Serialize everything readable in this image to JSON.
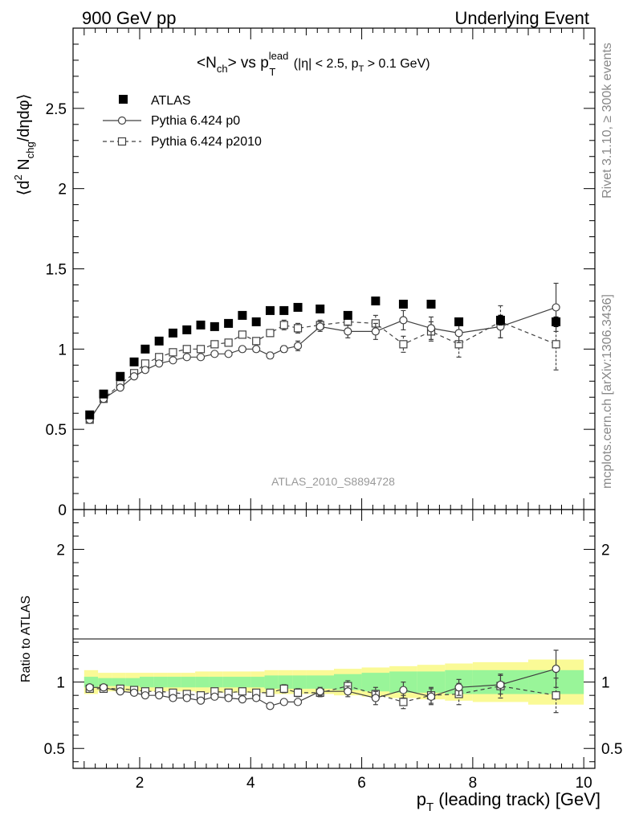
{
  "header": {
    "left": "900 GeV pp",
    "right": "Underlying Event"
  },
  "title_parts": {
    "a": "<N",
    "a_sub": "ch",
    "b": "> vs p",
    "b_sup": "lead",
    "b_sub": "T",
    "c": " (|η| < 2.5, p",
    "c_sub": "T",
    "d": " > 0.1 GeV)"
  },
  "ylabel_parts": {
    "a": "⟨d",
    "a_sup": "2",
    "b": " N",
    "b_sub": "chg",
    "c": "/dηdφ⟩"
  },
  "ratio_ylabel": "Ratio to ATLAS",
  "xlabel_parts": {
    "a": "p",
    "a_sub": "T",
    "b": " (leading track) [GeV]"
  },
  "side_text_1": "Rivet 3.1.10, ≥ 300k events",
  "side_text_2": "mcplots.cern.ch [arXiv:1306.3436]",
  "analysis_tag": "ATLAS_2010_S8894728",
  "legend": {
    "atlas": "ATLAS",
    "p0": "Pythia 6.424 p0",
    "p2010": "Pythia 6.424 p2010"
  },
  "colors": {
    "atlas": "#000000",
    "mc": "#404040",
    "band_inner": "#99f599",
    "band_outer": "#fafa96",
    "tag": "#999999"
  },
  "chart_data": [
    {
      "type": "scatter",
      "panel": "main",
      "xlim": [
        0.8,
        10.2
      ],
      "ylim": [
        0,
        3.0
      ],
      "yticks": [
        0,
        0.5,
        1,
        1.5,
        2,
        2.5
      ],
      "ytick_labels": [
        "0",
        "0.5",
        "1",
        "1.5",
        "2",
        "2.5"
      ],
      "x": [
        1.1,
        1.35,
        1.65,
        1.9,
        2.1,
        2.35,
        2.6,
        2.85,
        3.1,
        3.35,
        3.6,
        3.85,
        4.1,
        4.35,
        4.6,
        4.85,
        5.25,
        5.75,
        6.25,
        6.75,
        7.25,
        7.75,
        8.5,
        9.5
      ],
      "series": [
        {
          "name": "ATLAS",
          "marker": "filled-square",
          "values": [
            0.59,
            0.72,
            0.83,
            0.92,
            1.0,
            1.05,
            1.1,
            1.12,
            1.15,
            1.14,
            1.16,
            1.21,
            1.17,
            1.24,
            1.24,
            1.26,
            1.25,
            1.21,
            1.3,
            1.28,
            1.28,
            1.17,
            1.18,
            1.17
          ],
          "errors": [
            0,
            0,
            0,
            0,
            0,
            0,
            0,
            0,
            0,
            0,
            0,
            0,
            0,
            0,
            0,
            0,
            0,
            0,
            0,
            0,
            0,
            0.02,
            0.03,
            0.03
          ]
        },
        {
          "name": "Pythia 6.424 p0",
          "marker": "open-circle",
          "line": "solid",
          "values": [
            0.56,
            0.69,
            0.76,
            0.83,
            0.87,
            0.91,
            0.93,
            0.95,
            0.95,
            0.97,
            0.97,
            1.0,
            1.0,
            0.96,
            1.0,
            1.02,
            1.14,
            1.11,
            1.11,
            1.18,
            1.13,
            1.1,
            1.14,
            1.26
          ],
          "errors": [
            0.01,
            0.01,
            0.01,
            0.01,
            0.01,
            0.01,
            0.01,
            0.01,
            0.01,
            0.01,
            0.01,
            0.01,
            0.01,
            0.02,
            0.02,
            0.03,
            0.03,
            0.04,
            0.05,
            0.06,
            0.07,
            0.06,
            0.07,
            0.15
          ]
        },
        {
          "name": "Pythia 6.424 p2010",
          "marker": "open-square",
          "line": "dashed",
          "values": [
            0.56,
            0.69,
            0.78,
            0.85,
            0.91,
            0.95,
            0.98,
            1.0,
            1.0,
            1.03,
            1.04,
            1.09,
            1.05,
            1.1,
            1.15,
            1.13,
            1.15,
            1.17,
            1.16,
            1.03,
            1.11,
            1.03,
            1.17,
            1.03
          ],
          "errors": [
            0.01,
            0.01,
            0.01,
            0.01,
            0.01,
            0.01,
            0.01,
            0.01,
            0.01,
            0.01,
            0.01,
            0.02,
            0.02,
            0.02,
            0.03,
            0.03,
            0.03,
            0.04,
            0.05,
            0.05,
            0.06,
            0.08,
            0.1,
            0.16
          ]
        }
      ]
    },
    {
      "type": "line",
      "panel": "ratio",
      "ylabel": "Ratio to ATLAS",
      "xlabel": "p_T (leading track) [GeV]",
      "xlim": [
        0.8,
        10.2
      ],
      "ylim": [
        0.35,
        2.3
      ],
      "xticks": [
        2,
        4,
        6,
        8,
        10
      ],
      "xtick_labels": [
        "2",
        "4",
        "6",
        "8",
        "10"
      ],
      "yticks": [
        0.5,
        1,
        2
      ],
      "ytick_labels": [
        "0.5",
        "1",
        "2"
      ],
      "x": [
        1.1,
        1.35,
        1.65,
        1.9,
        2.1,
        2.35,
        2.6,
        2.85,
        3.1,
        3.35,
        3.6,
        3.85,
        4.1,
        4.35,
        4.6,
        4.85,
        5.25,
        5.75,
        6.25,
        6.75,
        7.25,
        7.75,
        8.5,
        9.5
      ],
      "band_edges": [
        1.0,
        1.25,
        1.5,
        1.75,
        2.0,
        2.25,
        2.5,
        2.75,
        3.0,
        3.25,
        3.5,
        3.75,
        4.0,
        4.25,
        4.5,
        4.75,
        5.0,
        5.5,
        6.0,
        6.5,
        7.0,
        7.5,
        8.0,
        9.0,
        10.0
      ],
      "band_inner": [
        0.04,
        0.03,
        0.03,
        0.03,
        0.04,
        0.04,
        0.04,
        0.04,
        0.04,
        0.04,
        0.04,
        0.04,
        0.04,
        0.05,
        0.05,
        0.05,
        0.05,
        0.06,
        0.07,
        0.08,
        0.08,
        0.09,
        0.09,
        0.09,
        0.09
      ],
      "band_outer": [
        0.09,
        0.07,
        0.07,
        0.07,
        0.07,
        0.07,
        0.07,
        0.07,
        0.08,
        0.08,
        0.08,
        0.08,
        0.08,
        0.09,
        0.09,
        0.09,
        0.09,
        0.1,
        0.11,
        0.12,
        0.13,
        0.14,
        0.15,
        0.17,
        0.17
      ],
      "series": [
        {
          "name": "Pythia 6.424 p0",
          "values": [
            0.96,
            0.96,
            0.93,
            0.92,
            0.9,
            0.9,
            0.88,
            0.88,
            0.86,
            0.89,
            0.88,
            0.87,
            0.88,
            0.82,
            0.85,
            0.85,
            0.93,
            0.93,
            0.88,
            0.94,
            0.89,
            0.96,
            0.98,
            1.1
          ],
          "errors": [
            0.01,
            0.01,
            0.01,
            0.01,
            0.01,
            0.01,
            0.01,
            0.01,
            0.01,
            0.01,
            0.01,
            0.01,
            0.01,
            0.02,
            0.02,
            0.02,
            0.03,
            0.04,
            0.05,
            0.06,
            0.06,
            0.06,
            0.07,
            0.14
          ]
        },
        {
          "name": "Pythia 6.424 p2010",
          "values": [
            0.95,
            0.95,
            0.95,
            0.94,
            0.93,
            0.93,
            0.92,
            0.91,
            0.9,
            0.93,
            0.92,
            0.93,
            0.92,
            0.92,
            0.95,
            0.92,
            0.92,
            0.97,
            0.91,
            0.85,
            0.9,
            0.91,
            0.97,
            0.9
          ],
          "errors": [
            0.01,
            0.01,
            0.01,
            0.01,
            0.01,
            0.01,
            0.01,
            0.01,
            0.01,
            0.01,
            0.01,
            0.02,
            0.02,
            0.02,
            0.03,
            0.03,
            0.03,
            0.04,
            0.05,
            0.05,
            0.06,
            0.08,
            0.09,
            0.13
          ]
        }
      ]
    }
  ]
}
